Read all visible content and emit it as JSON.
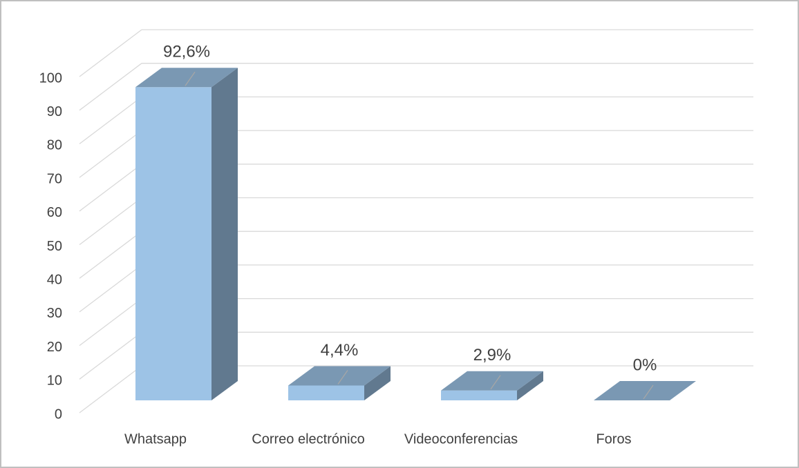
{
  "chart_data": {
    "type": "bar3d",
    "categories": [
      "Whatsapp",
      "Correo electrónico",
      "Videoconferencias",
      "Foros"
    ],
    "values": [
      92.6,
      4.4,
      2.9,
      0
    ],
    "value_labels": [
      "92,6%",
      "4,4%",
      "2,9%",
      "0%"
    ],
    "color": "#9dc3e6",
    "ylim": [
      0,
      100
    ],
    "yticks": [
      0,
      10,
      20,
      30,
      40,
      50,
      60,
      70,
      80,
      90,
      100
    ],
    "grid": true
  }
}
